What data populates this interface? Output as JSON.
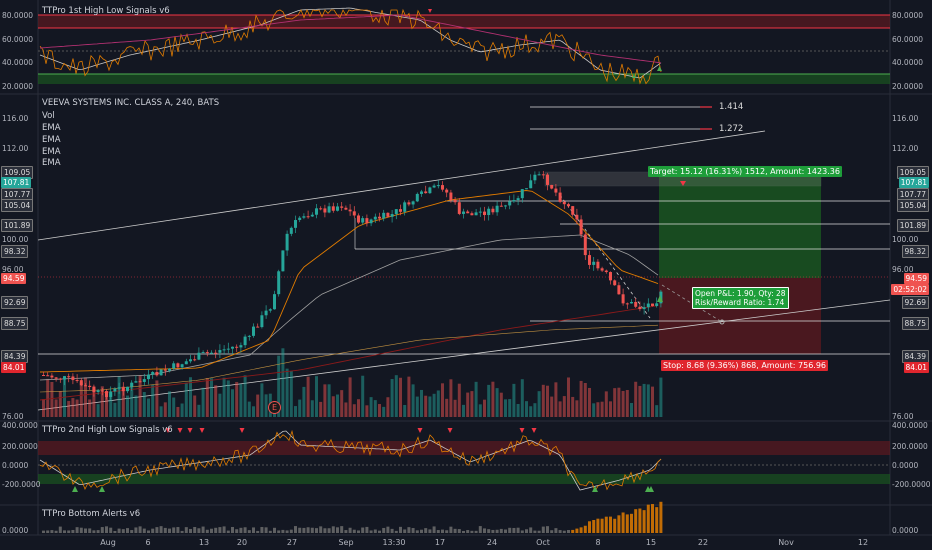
{
  "panes": {
    "top": {
      "title": "TTPro 1st High Low Signals v6",
      "right_ticks": [
        "80.0000",
        "60.0000",
        "40.0000",
        "20.0000"
      ],
      "left_ticks": [
        "80.0000",
        "60.0000",
        "40.0000",
        "20.0000"
      ]
    },
    "main": {
      "title": "VEEVA SYSTEMS INC. CLASS A, 240, BATS",
      "indicators": [
        "Vol",
        "EMA",
        "EMA",
        "EMA",
        "EMA"
      ],
      "right_ticks": [
        "116.00",
        "112.00",
        "109.05",
        "107.81",
        "107.77",
        "105.04",
        "101.89",
        "100.00",
        "98.32",
        "96.00",
        "94.59",
        "02:52:02",
        "92.69",
        "88.75",
        "84.39",
        "84.01",
        "76.00"
      ],
      "left_ticks": [
        "116.00",
        "112.00",
        "109.05",
        "107.81",
        "107.77",
        "105.04",
        "101.89",
        "100.00",
        "98.32",
        "96.00",
        "94.59",
        "92.69",
        "88.75",
        "84.39",
        "84.01",
        "76.00"
      ],
      "fib_labels": [
        "1.414",
        "1.272"
      ],
      "target_label": "Target: 15.12 (16.31%) 1512, Amount: 1423.36",
      "stop_label": "Stop: 8.68 (9.36%) 868, Amount: 756.96",
      "pnl_line1": "Open P&L: 1.90, Qty: 28",
      "pnl_line2": "Risk/Reward Ratio: 1.74",
      "earnings_marker": "E"
    },
    "second": {
      "title": "TTPro 2nd High Low Signals v6",
      "right_ticks": [
        "400.0000",
        "200.0000",
        "0.0000",
        "-200.0000"
      ],
      "left_ticks": [
        "400.0000",
        "200.0000",
        "0.0000",
        "-200.0000"
      ]
    },
    "bottom": {
      "title": "TTPro Bottom Alerts v6",
      "right_ticks": [
        "0.0000"
      ],
      "left_ticks": [
        "0.0000"
      ]
    }
  },
  "time_axis": [
    "Aug",
    "6",
    "13",
    "20",
    "27",
    "Sep",
    "13:30",
    "17",
    "24",
    "Oct",
    "8",
    "15",
    "22",
    "Nov",
    "12"
  ],
  "colors": {
    "background": "#131722",
    "up": "#26a69a",
    "down": "#ef5350",
    "target_zone": "#1b5e20",
    "stop_zone": "#5d1a1f",
    "accent_green": "#4caf50",
    "accent_red": "#f23645"
  }
}
